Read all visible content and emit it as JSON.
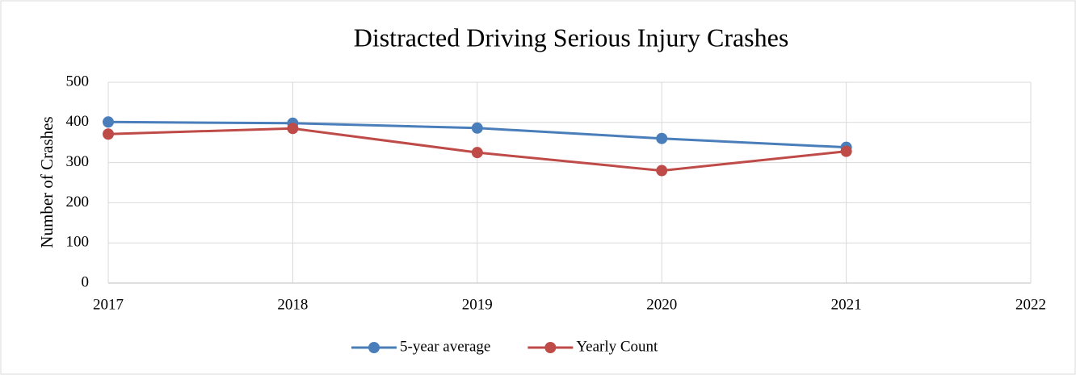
{
  "chart_data": {
    "type": "line",
    "title": "Distracted Driving Serious Injury Crashes",
    "y_label": "Number of Crashes",
    "x": [
      2017,
      2018,
      2019,
      2020,
      2021
    ],
    "series": [
      {
        "name": "5-year average",
        "color": "#4a7ebb",
        "values": [
          401,
          398,
          386,
          360,
          338
        ]
      },
      {
        "name": "Yearly Count",
        "color": "#be4b48",
        "values": [
          371,
          385,
          325,
          280,
          328
        ]
      }
    ],
    "xlim": [
      2017,
      2022
    ],
    "xticks": [
      2017,
      2018,
      2019,
      2020,
      2021,
      2022
    ],
    "ylim": [
      0,
      500
    ],
    "yticks": [
      0,
      100,
      200,
      300,
      400,
      500
    ],
    "grid": true,
    "legend": "bottom"
  }
}
